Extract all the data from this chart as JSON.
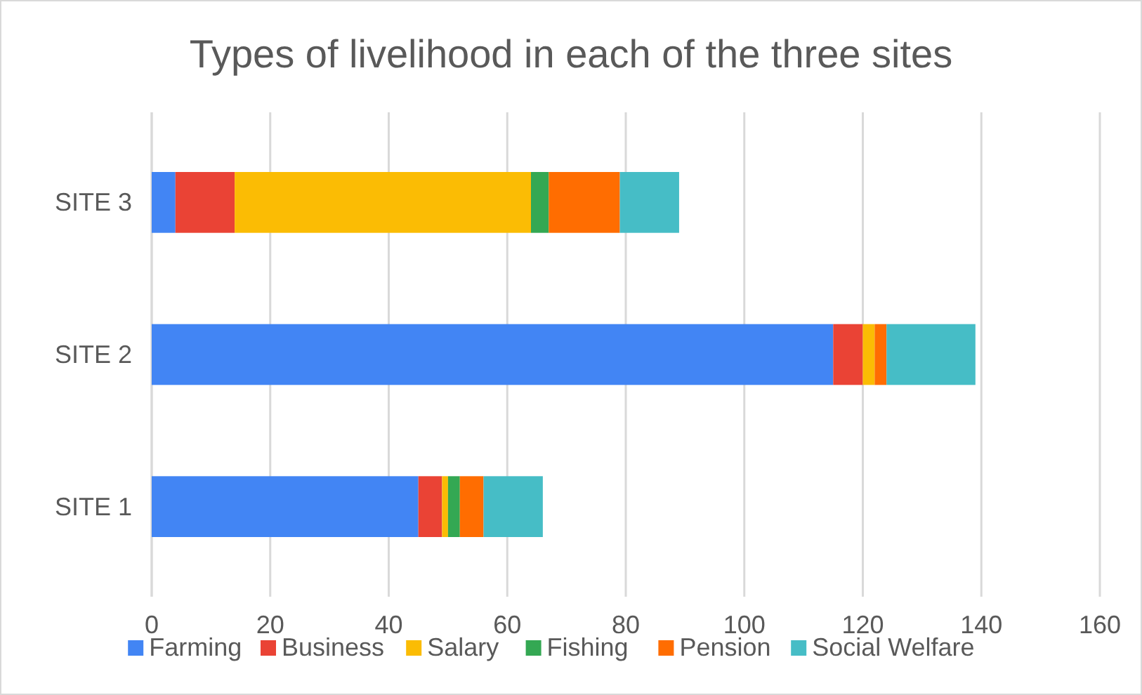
{
  "chart_data": {
    "type": "bar",
    "orientation": "horizontal",
    "stacked": true,
    "title": "Types of livelihood in each of the three sites",
    "categories": [
      "SITE 3",
      "SITE 2",
      "SITE 1"
    ],
    "series": [
      {
        "name": "Farming",
        "color": "#4285f4",
        "values": [
          4,
          115,
          45
        ]
      },
      {
        "name": "Business",
        "color": "#ea4335",
        "values": [
          10,
          5,
          4
        ]
      },
      {
        "name": "Salary",
        "color": "#fbbc04",
        "values": [
          50,
          2,
          1
        ]
      },
      {
        "name": "Fishing",
        "color": "#34a853",
        "values": [
          3,
          0,
          2
        ]
      },
      {
        "name": "Pension",
        "color": "#ff6d01",
        "values": [
          12,
          2,
          4
        ]
      },
      {
        "name": "Social Welfare",
        "color": "#46bdc6",
        "values": [
          10,
          15,
          10
        ]
      }
    ],
    "xlim": [
      0,
      160
    ],
    "xticks": [
      0,
      20,
      40,
      60,
      80,
      100,
      120,
      140,
      160
    ],
    "grid": "x",
    "legend": "bottom"
  }
}
